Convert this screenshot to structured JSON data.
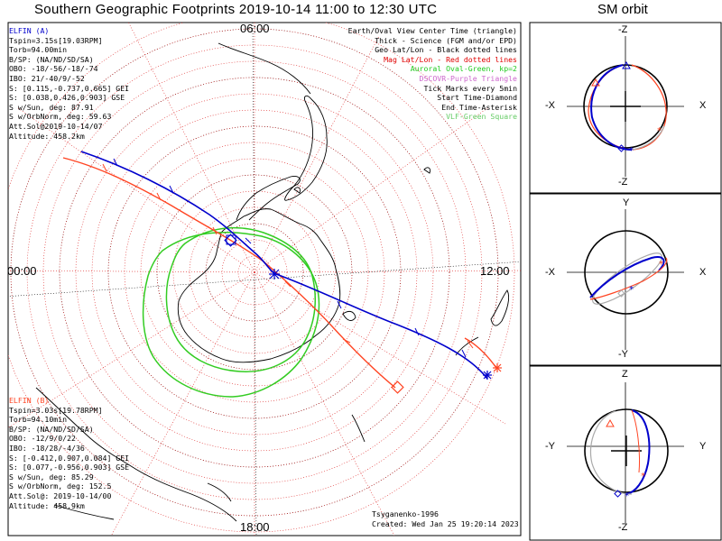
{
  "header": {
    "title": "Southern Geographic Footprints 2019-10-14 11:00 to 12:30 UTC",
    "orbit_title": "SM orbit"
  },
  "map": {
    "hour_labels": {
      "top": "06:00",
      "left": "00:00",
      "right": "12:00",
      "bottom": "18:00"
    },
    "legend": [
      {
        "text": "Earth/Oval View Center Time (triangle)",
        "color": "#000000"
      },
      {
        "text": "Thick - Science (FGM and/or EPD)",
        "color": "#000000"
      },
      {
        "text": "Geo Lat/Lon - Black dotted lines",
        "color": "#000000"
      },
      {
        "text": "Mag Lat/Lon - Red dotted lines",
        "color": "#e00000"
      },
      {
        "text": "Auroral Oval-Green, kp=2",
        "color": "#22cc22"
      },
      {
        "text": "DSCOVR-Purple Triangle",
        "color": "#cc66cc"
      },
      {
        "text": "Tick Marks every 5min",
        "color": "#000000"
      },
      {
        "text": "Start Time-Diamond",
        "color": "#000000"
      },
      {
        "text": "End Time-Asterisk",
        "color": "#000000"
      },
      {
        "text": "VLF-Green Square",
        "color": "#66cc66"
      }
    ],
    "elfin_a": {
      "color": "#0000cc",
      "name": "ELFIN (A)",
      "lines": [
        "Tspin=3.15s[19.03RPM]",
        "Torb=94.00min",
        "B/SP: (NA/ND/SD/SA)",
        "OBO: -18/-56/-18/-74",
        "IBO: 21/-40/9/-52",
        "S: [0.115,-0.737,0.665] GEI",
        "S: [0.038,0.426,0.903] GSE",
        "S w/Sun, deg: 87.91",
        "S w/OrbNorm, deg: 59.63",
        "Att.Sol@2019-10-14/07",
        "Altitude: 458.2km"
      ]
    },
    "elfin_b": {
      "color": "#ff4422",
      "name": "ELFIN (B)",
      "lines": [
        "Tspin=3.03s[19.78RPM]",
        "Torb=94.10min",
        "B/SP: (NA/ND/SD/SA)",
        "OBO: -12/9/0/22",
        "IBO: -18/28/-4/36",
        "S: [-0.412,0.907,0.084] GEI",
        "S: [0.077,-0.956,0.903] GSE",
        "S w/Sun, deg: 85.29",
        "S w/OrbNorm, deg: 152.5",
        "Att.Sol@: 2019-10-14/00",
        "Altitude: 458.9km"
      ]
    },
    "credits": [
      "Tsyganenko-1996",
      "Created: Wed Jan 25 19:20:14 2023"
    ]
  },
  "orbit_panels": [
    {
      "name": "xz",
      "top": "-Z",
      "bottom": "-Z",
      "left": "-X",
      "right": "X"
    },
    {
      "name": "xy",
      "top": "Y",
      "bottom": "-Y",
      "left": "-X",
      "right": "X"
    },
    {
      "name": "yz",
      "top": "Z",
      "bottom": "-Z",
      "left": "-Y",
      "right": "Y"
    }
  ],
  "colors": {
    "elfin_a": "#0000cc",
    "elfin_b": "#ff4422",
    "oval": "#33cc22",
    "mag_grid": "#dd2222",
    "orbit_gray": "#aaaaaa"
  }
}
